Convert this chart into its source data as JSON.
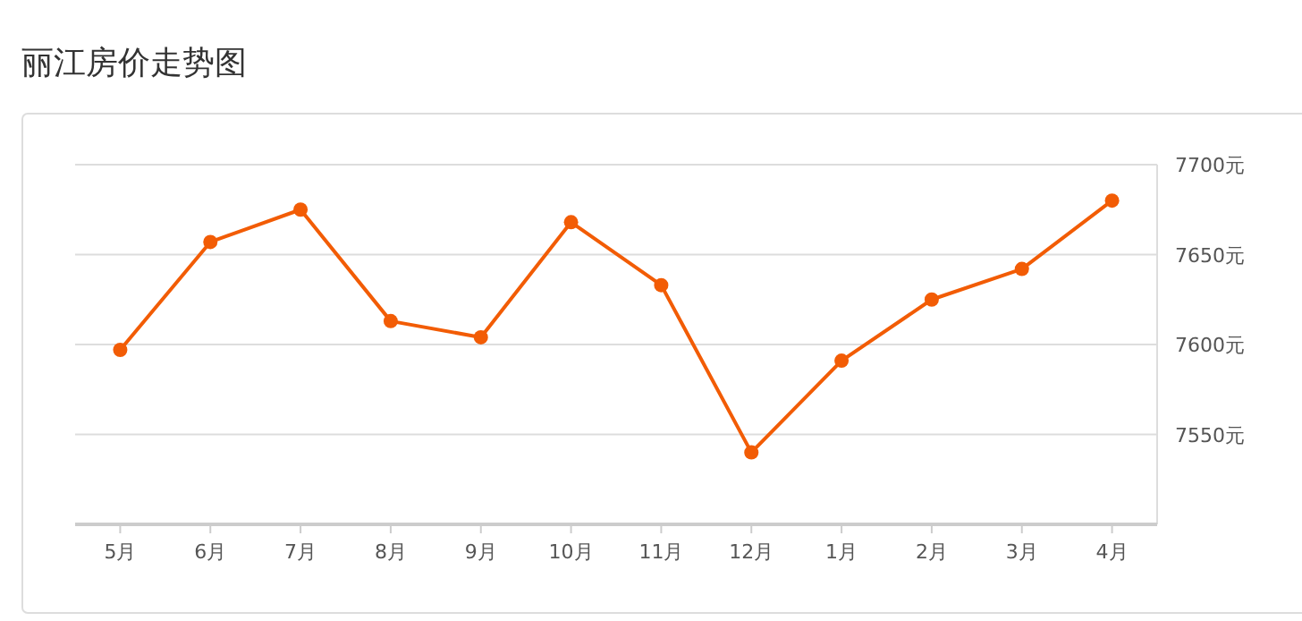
{
  "chart_data": {
    "type": "line",
    "title": "丽江房价走势图",
    "categories": [
      "5月",
      "6月",
      "7月",
      "8月",
      "9月",
      "10月",
      "11月",
      "12月",
      "1月",
      "2月",
      "3月",
      "4月"
    ],
    "series": [
      {
        "color": "#f25c05",
        "values": [
          7597,
          7657,
          7675,
          7613,
          7604,
          7668,
          7633,
          7540,
          7591,
          7625,
          7642,
          7680
        ]
      }
    ],
    "ylim": [
      7500,
      7700
    ],
    "yticks": [
      {
        "value": 7550,
        "label": "7550元"
      },
      {
        "value": 7600,
        "label": "7600元"
      },
      {
        "value": 7650,
        "label": "7650元"
      },
      {
        "value": 7700,
        "label": "7700元"
      }
    ],
    "grid": "y",
    "marker": "circle",
    "line_style": "solid"
  }
}
